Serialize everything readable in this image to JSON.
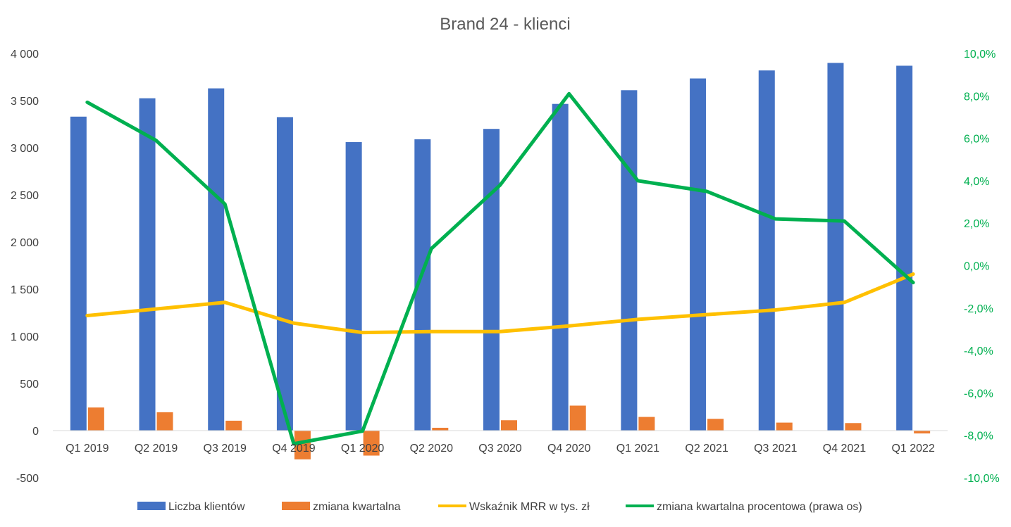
{
  "chart_data": {
    "type": "bar",
    "title": "Brand 24 - klienci",
    "categories": [
      "Q1 2019",
      "Q2 2019",
      "Q3 2019",
      "Q4 2019",
      "Q1 2020",
      "Q2 2020",
      "Q3 2020",
      "Q4 2020",
      "Q1 2021",
      "Q2 2021",
      "Q3 2021",
      "Q4 2021",
      "Q1 2022"
    ],
    "y_left": {
      "range": [
        -500,
        4000
      ],
      "ticks": [
        -500,
        0,
        500,
        1000,
        1500,
        2000,
        2500,
        3000,
        3500,
        4000
      ],
      "tick_labels": [
        "-500",
        "0",
        "500",
        "1 000",
        "1 500",
        "2 000",
        "2 500",
        "3 000",
        "3 500",
        "4 000"
      ]
    },
    "y_right": {
      "range": [
        -10,
        10
      ],
      "ticks": [
        -10,
        -8,
        -6,
        -4,
        -2,
        0,
        2,
        4,
        6,
        8,
        10
      ],
      "tick_labels": [
        "-10,0%",
        "-8,0%",
        "-6,0%",
        "-4,0%",
        "-2,0%",
        "0,0%",
        "2,0%",
        "4,0%",
        "6,0%",
        "8,0%",
        "10,0%"
      ],
      "color": "#00b050"
    },
    "series": [
      {
        "name": "Liczba klientów",
        "kind": "bar",
        "axis": "left",
        "color": "#4472c4",
        "values": [
          3330,
          3525,
          3630,
          3325,
          3060,
          3090,
          3200,
          3465,
          3610,
          3735,
          3820,
          3900,
          3870
        ]
      },
      {
        "name": "zmiana kwartalna",
        "kind": "bar",
        "axis": "left",
        "color": "#ed7d31",
        "values": [
          245,
          195,
          105,
          -305,
          -265,
          30,
          110,
          265,
          145,
          125,
          85,
          80,
          -30
        ]
      },
      {
        "name": "Wskaźnik MRR w tys. zł",
        "kind": "line",
        "axis": "left",
        "color": "#ffc000",
        "values": [
          1220,
          1290,
          1360,
          1140,
          1040,
          1050,
          1050,
          1110,
          1180,
          1230,
          1280,
          1360,
          1660
        ]
      },
      {
        "name": "zmiana kwartalna procentowa (prawa os)",
        "kind": "line",
        "axis": "right",
        "color": "#00b050",
        "values": [
          7.7,
          5.9,
          2.9,
          -8.4,
          -7.8,
          0.8,
          3.8,
          8.1,
          4.0,
          3.5,
          2.2,
          2.1,
          -0.8
        ]
      }
    ],
    "legend_position": "bottom",
    "grid": false
  }
}
